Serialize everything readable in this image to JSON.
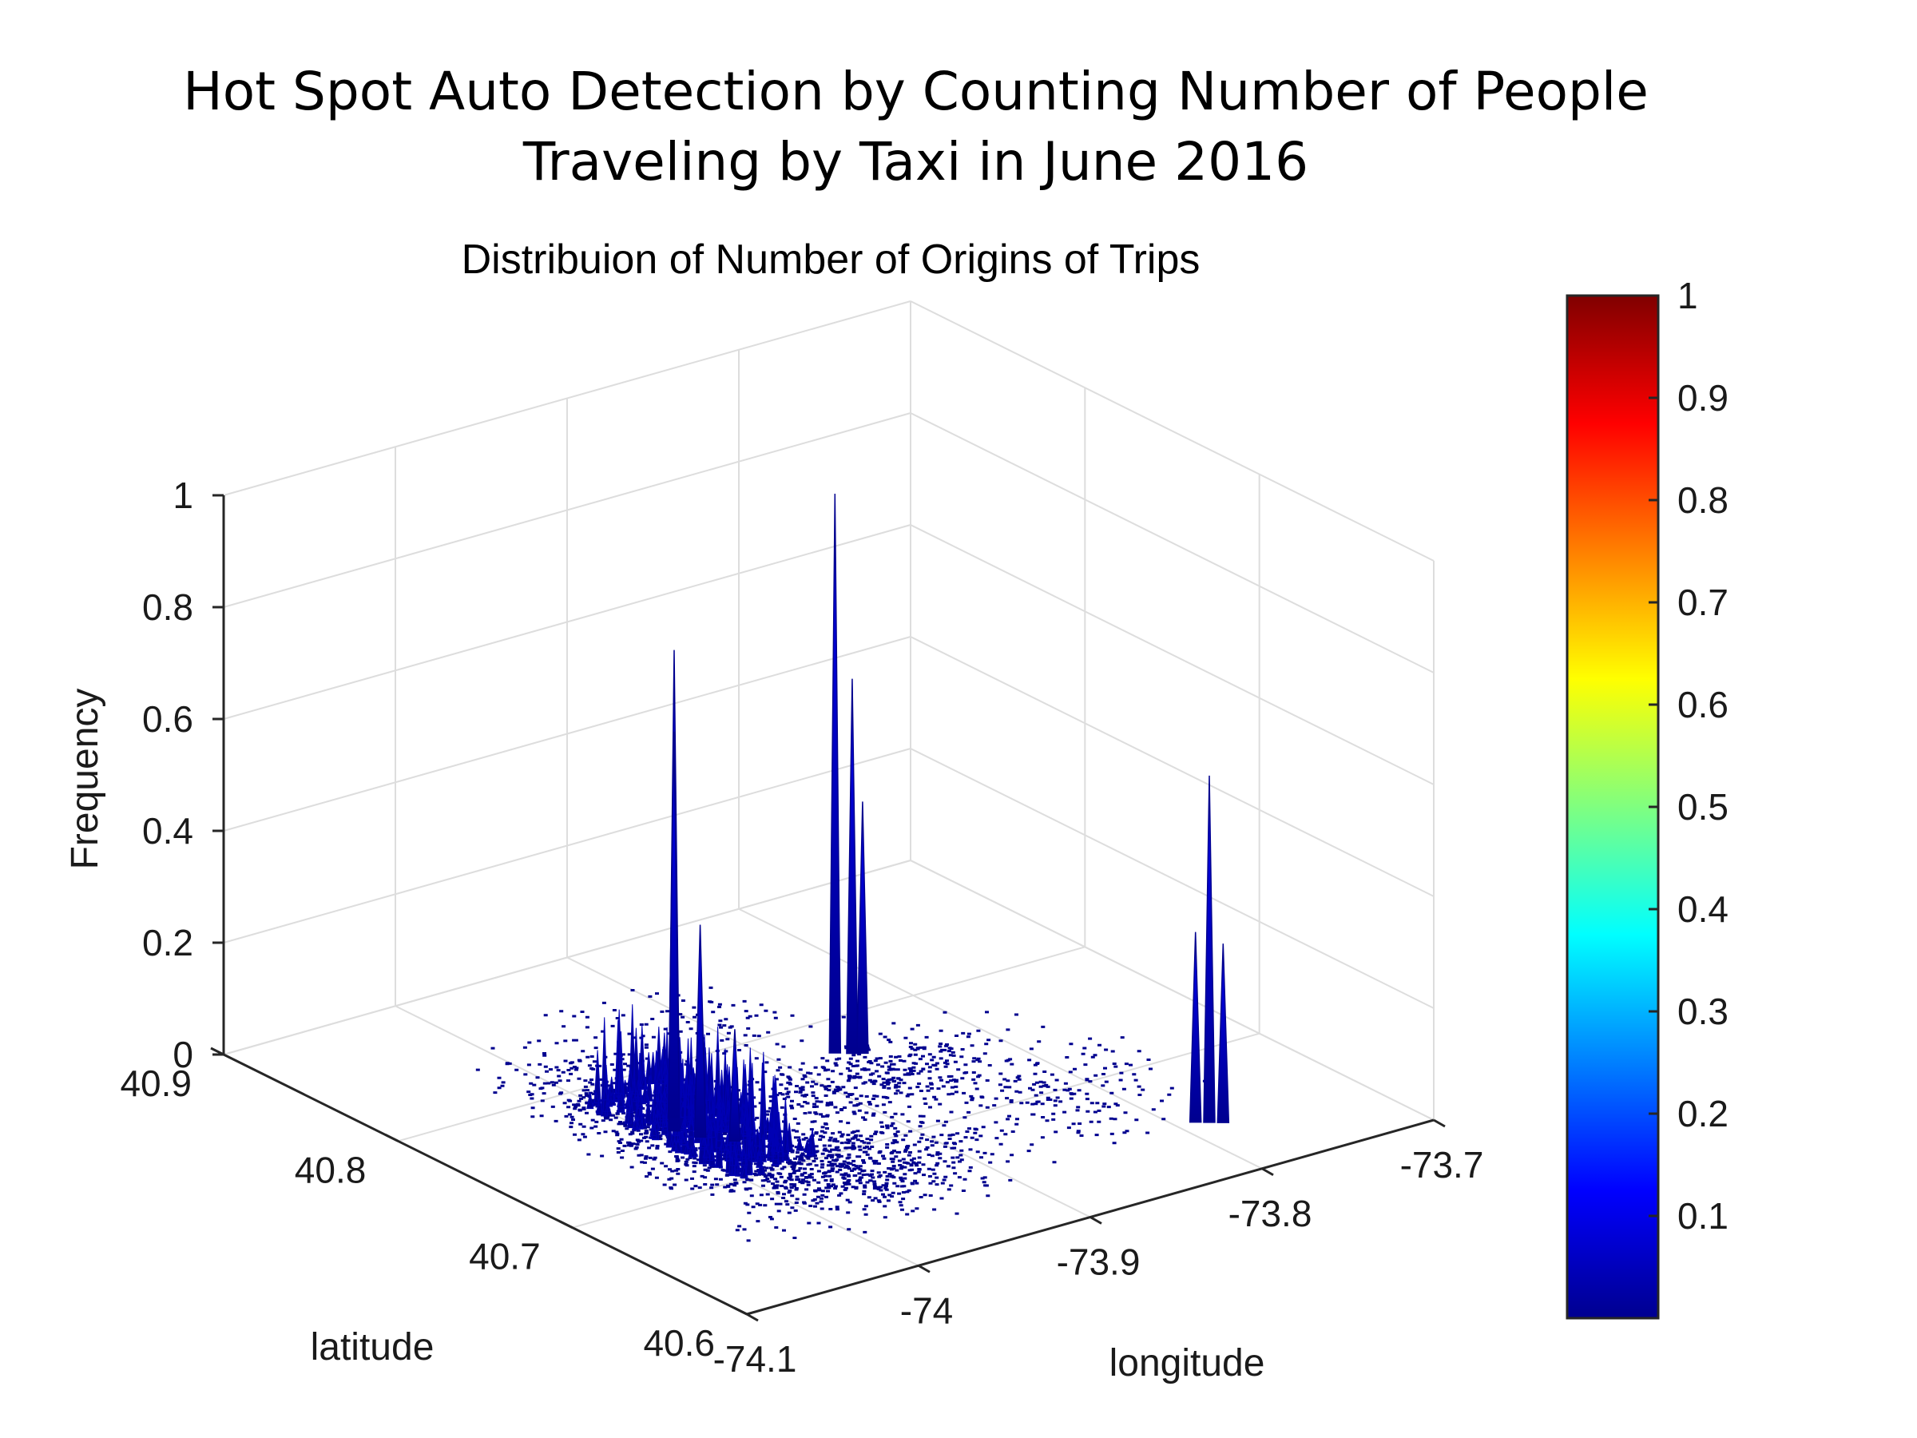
{
  "figure": {
    "title_line1": "Hot Spot Auto Detection by Counting Number of People",
    "title_line2": "Traveling by Taxi in June 2016"
  },
  "chart_data": {
    "type": "surface3d",
    "title": "Distribuion of Number of Origins of Trips",
    "xlabel": "longitude",
    "ylabel": "latitude",
    "zlabel": "Frequency",
    "xlim": [
      -74.1,
      -73.7
    ],
    "ylim": [
      40.6,
      40.9
    ],
    "zlim": [
      0,
      1
    ],
    "xticks": [
      "-74.1",
      "-74",
      "-73.9",
      "-73.8",
      "-73.7"
    ],
    "yticks": [
      "40.6",
      "40.7",
      "40.8",
      "40.9"
    ],
    "zticks": [
      "0",
      "0.2",
      "0.4",
      "0.6",
      "0.8",
      "1"
    ],
    "grid": true,
    "colormap": "jet",
    "colorbar": {
      "ticks": [
        "0.1",
        "0.2",
        "0.3",
        "0.4",
        "0.5",
        "0.6",
        "0.7",
        "0.8",
        "0.9",
        "1"
      ],
      "range": [
        0,
        1
      ]
    },
    "peaks": [
      {
        "x": -73.99,
        "y": 40.75,
        "z": 0.86
      },
      {
        "x": -73.98,
        "y": 40.76,
        "z": 0.69
      },
      {
        "x": -73.985,
        "y": 40.74,
        "z": 0.38
      },
      {
        "x": -73.975,
        "y": 40.73,
        "z": 0.2
      },
      {
        "x": -73.872,
        "y": 40.774,
        "z": 1.0
      },
      {
        "x": -73.866,
        "y": 40.77,
        "z": 0.67
      },
      {
        "x": -73.862,
        "y": 40.768,
        "z": 0.45
      },
      {
        "x": -73.785,
        "y": 40.645,
        "z": 0.62
      },
      {
        "x": -73.79,
        "y": 40.648,
        "z": 0.34
      },
      {
        "x": -73.78,
        "y": 40.642,
        "z": 0.32
      }
    ],
    "colors": {
      "low": "#00008f",
      "surface": "#00009c",
      "grid": "#dddddd",
      "axis": "#262626"
    }
  }
}
